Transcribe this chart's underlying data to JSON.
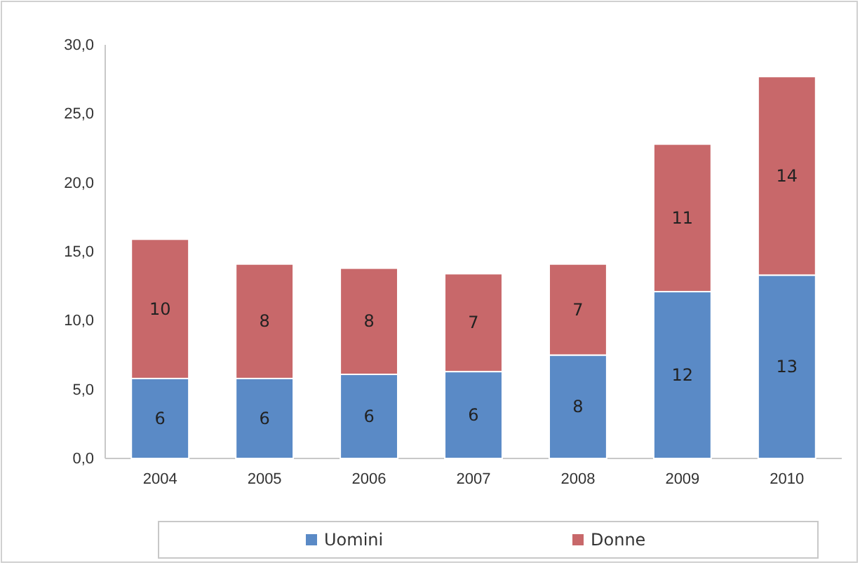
{
  "chart_data": {
    "type": "bar",
    "stacked": true,
    "categories": [
      "2004",
      "2005",
      "2006",
      "2007",
      "2008",
      "2009",
      "2010"
    ],
    "series": [
      {
        "name": "Uomini",
        "color": "#5a8ac6",
        "values": [
          5.8,
          5.8,
          6.1,
          6.3,
          7.5,
          12.1,
          13.3
        ],
        "value_labels": [
          "6",
          "6",
          "6",
          "6",
          "8",
          "12",
          "13"
        ]
      },
      {
        "name": "Donne",
        "color": "#c8686a",
        "values": [
          10.1,
          8.3,
          7.7,
          7.1,
          6.6,
          10.7,
          14.4
        ],
        "value_labels": [
          "10",
          "8",
          "8",
          "7",
          "7",
          "11",
          "14"
        ]
      }
    ],
    "ylim": [
      0,
      30
    ],
    "yticks": [
      {
        "value": 0,
        "label": "0,0"
      },
      {
        "value": 5,
        "label": "5,0"
      },
      {
        "value": 10,
        "label": "10,0"
      },
      {
        "value": 15,
        "label": "15,0"
      },
      {
        "value": 20,
        "label": "20,0"
      },
      {
        "value": 25,
        "label": "25,0"
      },
      {
        "value": 30,
        "label": "30,0"
      }
    ],
    "legend": "bottom"
  }
}
